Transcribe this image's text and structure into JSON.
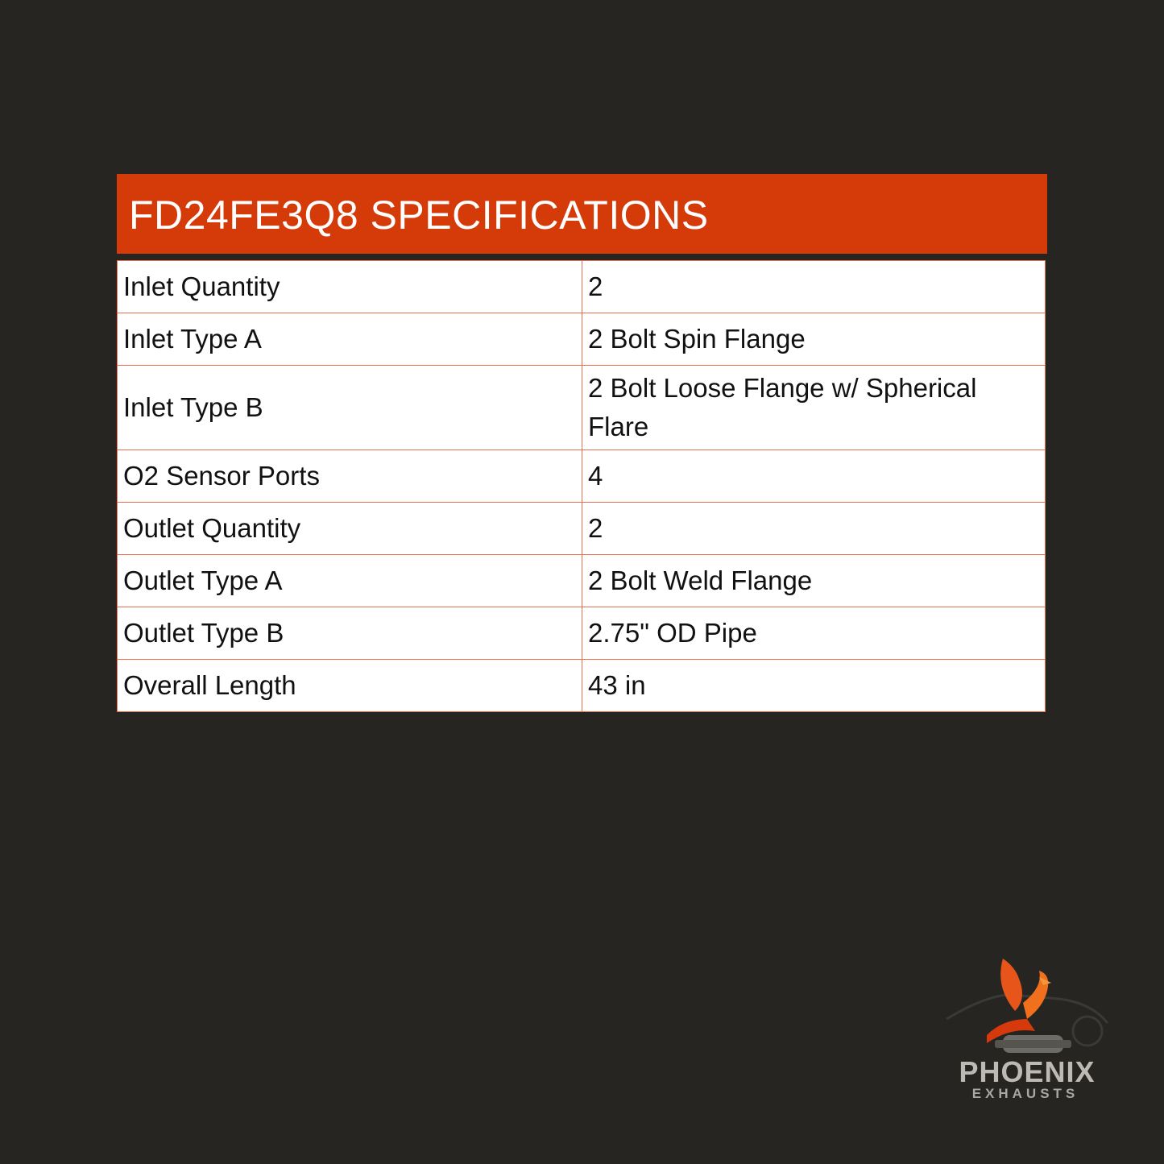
{
  "title": "FD24FE3Q8 SPECIFICATIONS",
  "colors": {
    "background": "#262521",
    "accent": "#d53a09",
    "border": "#e8704a"
  },
  "specs": [
    {
      "label": "Inlet Quantity",
      "value": "2"
    },
    {
      "label": "Inlet Type A",
      "value": "2 Bolt Spin Flange"
    },
    {
      "label": "Inlet Type B",
      "value": "2 Bolt Loose Flange w/ Spherical Flare"
    },
    {
      "label": "O2 Sensor Ports",
      "value": "4"
    },
    {
      "label": "Outlet Quantity",
      "value": "2"
    },
    {
      "label": "Outlet Type A",
      "value": "2 Bolt Weld Flange"
    },
    {
      "label": "Outlet Type B",
      "value": "2.75\" OD Pipe"
    },
    {
      "label": "Overall Length",
      "value": "43 in"
    }
  ],
  "logo": {
    "name": "PHOENIX",
    "sub": "EXHAUSTS",
    "icon": "phoenix-on-catalytic-converter-icon"
  }
}
